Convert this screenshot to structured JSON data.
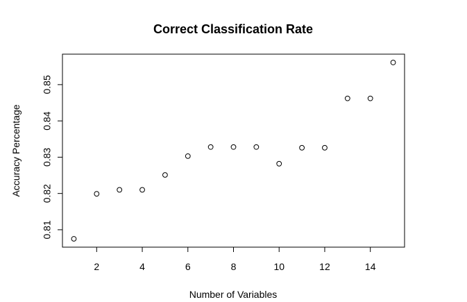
{
  "chart_data": {
    "type": "scatter",
    "title": "Correct Classification Rate",
    "xlabel": "Number of Variables",
    "ylabel": "Accuracy Percentage",
    "x": [
      1,
      2,
      3,
      4,
      5,
      6,
      7,
      8,
      9,
      10,
      11,
      12,
      13,
      14,
      15
    ],
    "y": [
      0.8075,
      0.8199,
      0.821,
      0.821,
      0.8251,
      0.8303,
      0.8328,
      0.8328,
      0.8328,
      0.8282,
      0.8326,
      0.8326,
      0.8462,
      0.8462,
      0.8561
    ],
    "xlim": [
      0.5,
      15.5
    ],
    "ylim": [
      0.8052,
      0.8584
    ],
    "xticks": [
      2,
      4,
      6,
      8,
      10,
      12,
      14
    ],
    "yticks": [
      0.81,
      0.82,
      0.83,
      0.84,
      0.85
    ],
    "xtick_labels": [
      "2",
      "4",
      "6",
      "8",
      "10",
      "12",
      "14"
    ],
    "ytick_labels": [
      "0.81",
      "0.82",
      "0.83",
      "0.84",
      "0.85"
    ],
    "grid": false,
    "legend": false,
    "marker": "open-circle",
    "colors": {
      "axis": "#000000",
      "marker": "#000000",
      "background": "#ffffff"
    }
  }
}
